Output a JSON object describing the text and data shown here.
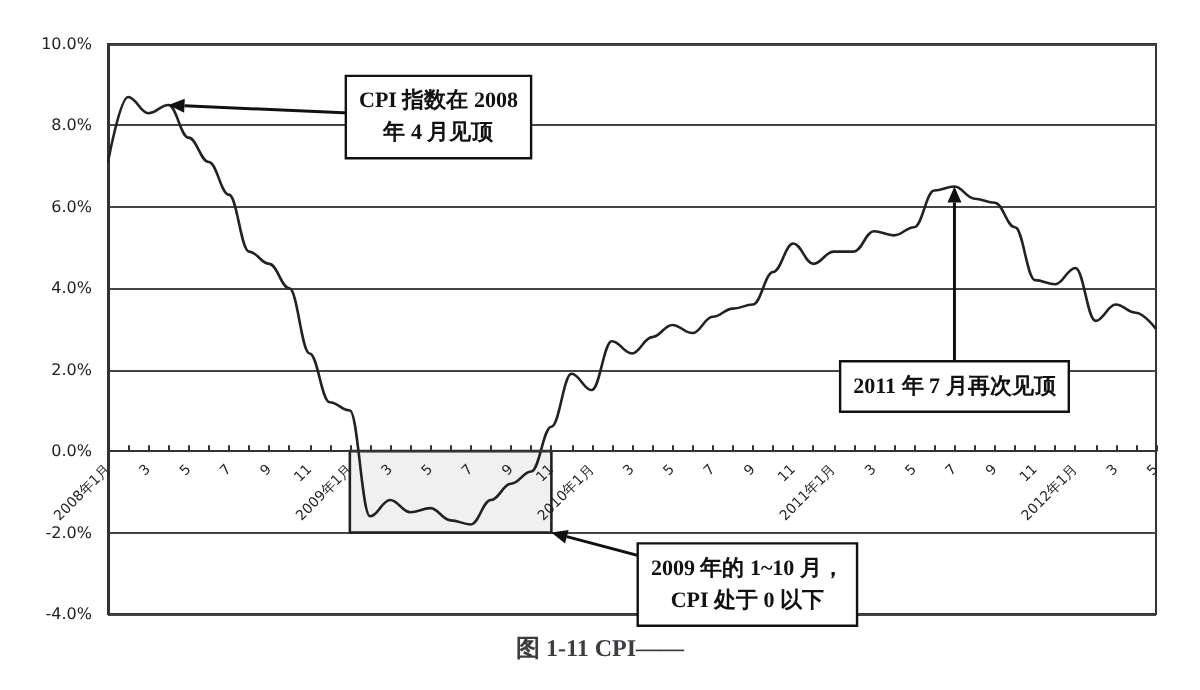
{
  "chart_data": {
    "type": "line",
    "title": "图 1-11 CPI——",
    "x": [
      "2008-01",
      "2008-02",
      "2008-03",
      "2008-04",
      "2008-05",
      "2008-06",
      "2008-07",
      "2008-08",
      "2008-09",
      "2008-10",
      "2008-11",
      "2008-12",
      "2009-01",
      "2009-02",
      "2009-03",
      "2009-04",
      "2009-05",
      "2009-06",
      "2009-07",
      "2009-08",
      "2009-09",
      "2009-10",
      "2009-11",
      "2009-12",
      "2010-01",
      "2010-02",
      "2010-03",
      "2010-04",
      "2010-05",
      "2010-06",
      "2010-07",
      "2010-08",
      "2010-09",
      "2010-10",
      "2010-11",
      "2010-12",
      "2011-01",
      "2011-02",
      "2011-03",
      "2011-04",
      "2011-05",
      "2011-06",
      "2011-07",
      "2011-08",
      "2011-09",
      "2011-10",
      "2011-11",
      "2011-12",
      "2012-01",
      "2012-02",
      "2012-03",
      "2012-04",
      "2012-05"
    ],
    "series": [
      {
        "color": "#222222",
        "values": [
          7.1,
          8.7,
          8.3,
          8.5,
          7.7,
          7.1,
          6.3,
          4.9,
          4.6,
          4.0,
          2.4,
          1.2,
          1.0,
          -1.6,
          -1.2,
          -1.5,
          -1.4,
          -1.7,
          -1.8,
          -1.2,
          -0.8,
          -0.5,
          0.6,
          1.9,
          1.5,
          2.7,
          2.4,
          2.8,
          3.1,
          2.9,
          3.3,
          3.5,
          3.6,
          4.4,
          5.1,
          4.6,
          4.9,
          4.9,
          5.4,
          5.3,
          5.5,
          6.4,
          6.5,
          6.2,
          6.1,
          5.5,
          4.2,
          4.1,
          4.5,
          3.2,
          3.6,
          3.4,
          3.0
        ]
      }
    ],
    "xlim": [
      "2008-01",
      "2012-05"
    ],
    "xticks": [
      {
        "value": "2008-01",
        "label": "2008年1月"
      },
      {
        "value": "2008-02",
        "label": null
      },
      {
        "value": "2008-03",
        "label": "3"
      },
      {
        "value": "2008-04",
        "label": null
      },
      {
        "value": "2008-05",
        "label": "5"
      },
      {
        "value": "2008-06",
        "label": null
      },
      {
        "value": "2008-07",
        "label": "7"
      },
      {
        "value": "2008-08",
        "label": null
      },
      {
        "value": "2008-09",
        "label": "9"
      },
      {
        "value": "2008-10",
        "label": null
      },
      {
        "value": "2008-11",
        "label": "11"
      },
      {
        "value": "2008-12",
        "label": null
      },
      {
        "value": "2009-01",
        "label": "2009年1月"
      },
      {
        "value": "2009-02",
        "label": null
      },
      {
        "value": "2009-03",
        "label": "3"
      },
      {
        "value": "2009-04",
        "label": null
      },
      {
        "value": "2009-05",
        "label": "5"
      },
      {
        "value": "2009-06",
        "label": null
      },
      {
        "value": "2009-07",
        "label": "7"
      },
      {
        "value": "2009-08",
        "label": null
      },
      {
        "value": "2009-09",
        "label": "9"
      },
      {
        "value": "2009-10",
        "label": null
      },
      {
        "value": "2009-11",
        "label": "11"
      },
      {
        "value": "2009-12",
        "label": null
      },
      {
        "value": "2010-01",
        "label": "2010年1月"
      },
      {
        "value": "2010-02",
        "label": null
      },
      {
        "value": "2010-03",
        "label": "3"
      },
      {
        "value": "2010-04",
        "label": null
      },
      {
        "value": "2010-05",
        "label": "5"
      },
      {
        "value": "2010-06",
        "label": null
      },
      {
        "value": "2010-07",
        "label": "7"
      },
      {
        "value": "2010-08",
        "label": null
      },
      {
        "value": "2010-09",
        "label": "9"
      },
      {
        "value": "2010-10",
        "label": null
      },
      {
        "value": "2010-11",
        "label": "11"
      },
      {
        "value": "2010-12",
        "label": null
      },
      {
        "value": "2011-01",
        "label": "2011年1月"
      },
      {
        "value": "2011-02",
        "label": null
      },
      {
        "value": "2011-03",
        "label": "3"
      },
      {
        "value": "2011-04",
        "label": null
      },
      {
        "value": "2011-05",
        "label": "5"
      },
      {
        "value": "2011-06",
        "label": null
      },
      {
        "value": "2011-07",
        "label": "7"
      },
      {
        "value": "2011-08",
        "label": null
      },
      {
        "value": "2011-09",
        "label": "9"
      },
      {
        "value": "2011-10",
        "label": null
      },
      {
        "value": "2011-11",
        "label": "11"
      },
      {
        "value": "2011-12",
        "label": null
      },
      {
        "value": "2012-01",
        "label": "2012年1月"
      },
      {
        "value": "2012-02",
        "label": null
      },
      {
        "value": "2012-03",
        "label": "3"
      },
      {
        "value": "2012-04",
        "label": null
      },
      {
        "value": "2012-05",
        "label": "5"
      }
    ],
    "ylim": [
      -4,
      10
    ],
    "yticks": [
      {
        "value": -4,
        "label": "-4.0%"
      },
      {
        "value": -2,
        "label": "-2.0%"
      },
      {
        "value": 0,
        "label": "0.0%"
      },
      {
        "value": 2,
        "label": "2.0%"
      },
      {
        "value": 4,
        "label": "4.0%"
      },
      {
        "value": 6,
        "label": "6.0%"
      },
      {
        "value": 8,
        "label": "8.0%"
      },
      {
        "value": 10,
        "label": "10.0%"
      }
    ],
    "grid": "y",
    "marker": "none",
    "line_style": "solid",
    "bands": [
      {
        "axis": "x",
        "from": "2009-01",
        "to": "2009-11",
        "color": "#f0f0f0"
      }
    ],
    "annotations": [
      {
        "text": "CPI 指数在 2008\n年 4 月见顶",
        "x": "2008-04",
        "y": 8.5
      },
      {
        "text": "2011 年 7 月再次见顶",
        "x": "2011-07",
        "y": 6.5
      },
      {
        "text": "2009 年的 1~10 月，\nCPI 处于 0 以下",
        "x": "2009-11",
        "y": -2
      }
    ]
  }
}
